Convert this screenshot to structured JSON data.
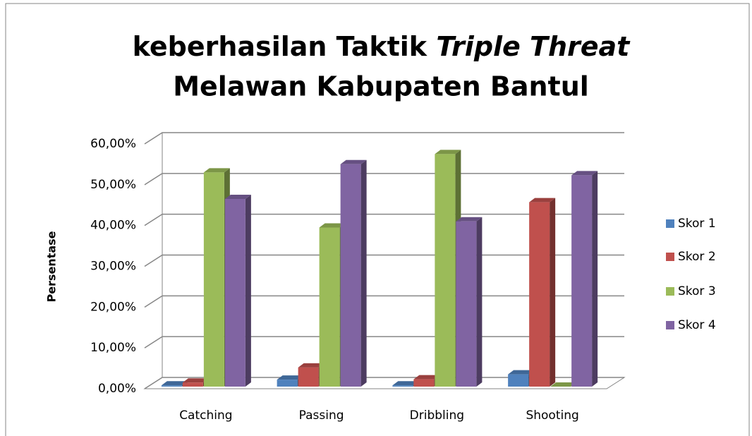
{
  "chart_data": {
    "type": "bar3d",
    "title": [
      "keberhasilan Taktik",
      "Triple Threat",
      "Melawan Kabupaten Bantul"
    ],
    "ylabel": "Persentase",
    "categories": [
      "Catching",
      "Passing",
      "Dribbling",
      "Shooting"
    ],
    "series": [
      {
        "name": "Skor 1",
        "color": "#4f81bd",
        "values": [
          0.3,
          1.7,
          0.3,
          3
        ]
      },
      {
        "name": "Skor 2",
        "color": "#c0504d",
        "values": [
          1,
          4.7,
          1.8,
          45.2
        ]
      },
      {
        "name": "Skor 3",
        "color": "#9bbb59",
        "values": [
          52.5,
          39,
          57,
          0
        ]
      },
      {
        "name": "Skor 4",
        "color": "#8064a2",
        "values": [
          46,
          54.5,
          40.5,
          51.8
        ]
      }
    ],
    "ylim": [
      0,
      60
    ],
    "yticks": [
      {
        "value": 0,
        "label": "0,00%"
      },
      {
        "value": 10,
        "label": "10,00%"
      },
      {
        "value": 20,
        "label": "20,00%"
      },
      {
        "value": 30,
        "label": "30,00%"
      },
      {
        "value": 40,
        "label": "40,00%"
      },
      {
        "value": 50,
        "label": "50,00%"
      },
      {
        "value": 60,
        "label": "60,00%"
      }
    ],
    "grid": true,
    "legend": "right"
  }
}
